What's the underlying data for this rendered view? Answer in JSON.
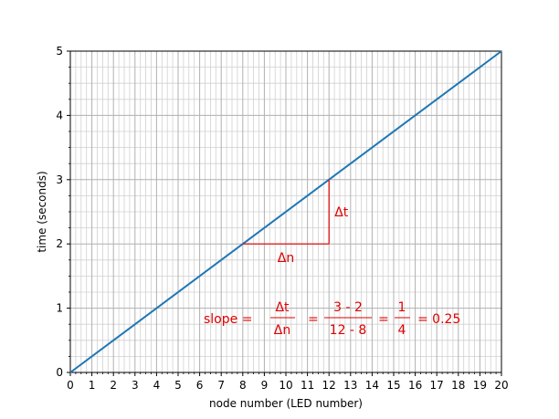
{
  "chart_data": {
    "type": "line",
    "xlabel": "node number (LED number)",
    "ylabel": "time (seconds)",
    "xlim": [
      0,
      20
    ],
    "ylim": [
      0,
      5
    ],
    "x_ticks": [
      0,
      1,
      2,
      3,
      4,
      5,
      6,
      7,
      8,
      9,
      10,
      11,
      12,
      13,
      14,
      15,
      16,
      17,
      18,
      19,
      20
    ],
    "y_ticks": [
      0,
      1,
      2,
      3,
      4,
      5
    ],
    "grid": true,
    "series": [
      {
        "x": [
          0,
          20
        ],
        "y": [
          0,
          5
        ],
        "color": "#1f77b4"
      }
    ],
    "triangle": {
      "x_start": 8,
      "x_end": 12,
      "y_start": 2,
      "y_end": 3,
      "color": "#e00000",
      "delta_t_label": "Δt",
      "delta_n_label": "Δn"
    },
    "slope_annotation": {
      "prefix": "slope =",
      "frac1_num": "Δt",
      "frac1_den": "Δn",
      "eq1": "=",
      "frac2_num": "3 - 2",
      "frac2_den": "12 - 8",
      "eq2": "=",
      "frac3_num": "1",
      "frac3_den": "4",
      "result": "= 0.25"
    }
  }
}
